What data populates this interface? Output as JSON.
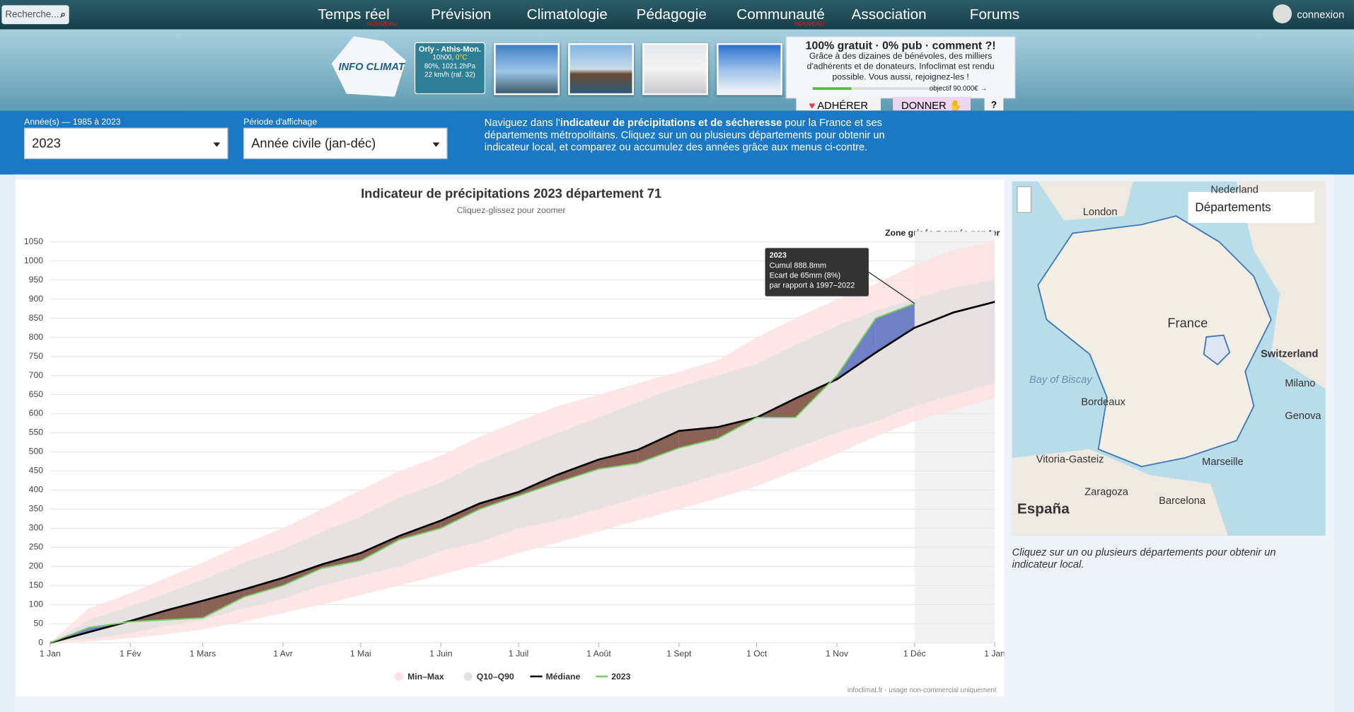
{
  "nav": {
    "search": "Recherche...",
    "items": [
      "Temps réel",
      "Prévision",
      "Climatologie",
      "Pédagogie",
      "Communauté",
      "Association",
      "Forums"
    ],
    "badge": "NOUVEAU",
    "login": "connexion"
  },
  "header": {
    "logo": "INFO CLIMAT",
    "weather": {
      "station": "Orly - Athis-Mon.",
      "time": "10h00,",
      "temp": "0°C",
      "details": "80%, 1021.2hPa",
      "wind": "22 km/h (raf. 32)"
    },
    "promo": {
      "title": "100% gratuit · 0% pub · comment ?!",
      "text": "Grâce à des dizaines de bénévoles, des milliers d'adhérents et de donateurs, Infoclimat est rendu possible. Vous aussi, rejoignez-les !",
      "goal": "objectif 90.000€ →"
    },
    "buttons": [
      "ADHÉRER",
      "DONNER",
      "?"
    ]
  },
  "controls": {
    "year_label": "Année(s) — 1985 à 2023",
    "year": "2023",
    "period_label": "Période d'affichage",
    "period": "Année civile (jan-déc)",
    "intro": [
      "Naviguez dans l'",
      "indicateur de précipitations et de sécheresse",
      " pour la France et ses départements métropolitains. Cliquez sur un ou plusieurs départements pour obtenir un indicateur local, et comparez ou accumulez des années grâce aux menus ci-contre."
    ]
  },
  "chart_data": {
    "type": "line",
    "title": "Indicateur de précipitations 2023 département 71",
    "subtitle": "Cliquez-glissez pour zoomer",
    "annotation": "Zone grisée = année non ter",
    "unfinished_zone": [
      334,
      365
    ],
    "x": [
      0,
      15,
      31,
      45,
      59,
      75,
      90,
      105,
      120,
      135,
      151,
      166,
      181,
      196,
      212,
      227,
      243,
      258,
      273,
      288,
      304,
      319,
      334,
      349,
      365
    ],
    "series": [
      {
        "name": "Min–Max",
        "color": "#fde2e2",
        "low": [
          0,
          3,
          12,
          22,
          35,
          55,
          78,
          100,
          125,
          150,
          178,
          205,
          235,
          262,
          292,
          320,
          350,
          378,
          410,
          450,
          495,
          540,
          580,
          610,
          640
        ],
        "high": [
          0,
          90,
          130,
          170,
          210,
          260,
          300,
          350,
          400,
          450,
          490,
          540,
          580,
          620,
          650,
          680,
          710,
          740,
          800,
          850,
          900,
          940,
          990,
          1030,
          1050
        ]
      },
      {
        "name": "Q10–Q90",
        "color": "#e3e0e1",
        "low": [
          0,
          10,
          25,
          45,
          60,
          90,
          115,
          150,
          175,
          200,
          240,
          265,
          300,
          320,
          350,
          380,
          410,
          440,
          470,
          510,
          550,
          580,
          620,
          650,
          680
        ],
        "high": [
          0,
          60,
          95,
          130,
          165,
          210,
          245,
          290,
          330,
          380,
          420,
          470,
          510,
          550,
          590,
          630,
          670,
          700,
          730,
          780,
          830,
          870,
          900,
          930,
          950
        ]
      },
      {
        "name": "Médiane",
        "color": "#000000",
        "values": [
          0,
          28,
          57,
          85,
          110,
          140,
          170,
          205,
          235,
          280,
          320,
          365,
          395,
          440,
          480,
          505,
          555,
          565,
          590,
          640,
          690,
          760,
          825,
          865,
          893
        ]
      },
      {
        "name": "2023",
        "color": "#7ccf6a",
        "values": [
          0,
          40,
          55,
          60,
          65,
          120,
          150,
          195,
          215,
          270,
          300,
          350,
          385,
          420,
          455,
          470,
          510,
          535,
          590,
          590,
          700,
          850,
          888.8,
          null,
          null
        ]
      }
    ],
    "below_color": "#8a6356",
    "above_color": "#7080c4",
    "xlim": [
      0,
      365
    ],
    "xticks": [
      {
        "value": 0,
        "label": "1 Jan"
      },
      {
        "value": 31,
        "label": "1 Fév"
      },
      {
        "value": 59,
        "label": "1 Mars"
      },
      {
        "value": 90,
        "label": "1 Avr"
      },
      {
        "value": 120,
        "label": "1 Mai"
      },
      {
        "value": 151,
        "label": "1 Juin"
      },
      {
        "value": 181,
        "label": "1 Juil"
      },
      {
        "value": 212,
        "label": "1 Août"
      },
      {
        "value": 243,
        "label": "1 Sept"
      },
      {
        "value": 273,
        "label": "1 Oct"
      },
      {
        "value": 304,
        "label": "1 Nov"
      },
      {
        "value": 334,
        "label": "1 Déc"
      },
      {
        "value": 365,
        "label": "1 Jan"
      }
    ],
    "ylim": [
      0,
      1050
    ],
    "yticks": [
      0,
      50,
      100,
      150,
      200,
      250,
      300,
      350,
      400,
      450,
      500,
      550,
      600,
      650,
      700,
      750,
      800,
      850,
      900,
      950,
      1000,
      1050
    ],
    "grid": true,
    "tooltip": [
      "2023",
      "Cumul 888.8mm",
      "Ecart de 65mm (8%)",
      "par rapport à 1997–2022"
    ],
    "credit": "infoclimat.fr - usage non-commercial uniquement"
  },
  "map": {
    "dropdown": "Départements",
    "labels": [
      "Nederland",
      "London",
      "France",
      "Switzerland",
      "Bay of Biscay",
      "Bordeaux",
      "Marseille",
      "Genova",
      "Milano",
      "Zaragoza",
      "Barcelona",
      "Vitoria-Gasteiz",
      "España"
    ],
    "caption": "Cliquez sur un ou plusieurs départements pour obtenir un indicateur local."
  }
}
